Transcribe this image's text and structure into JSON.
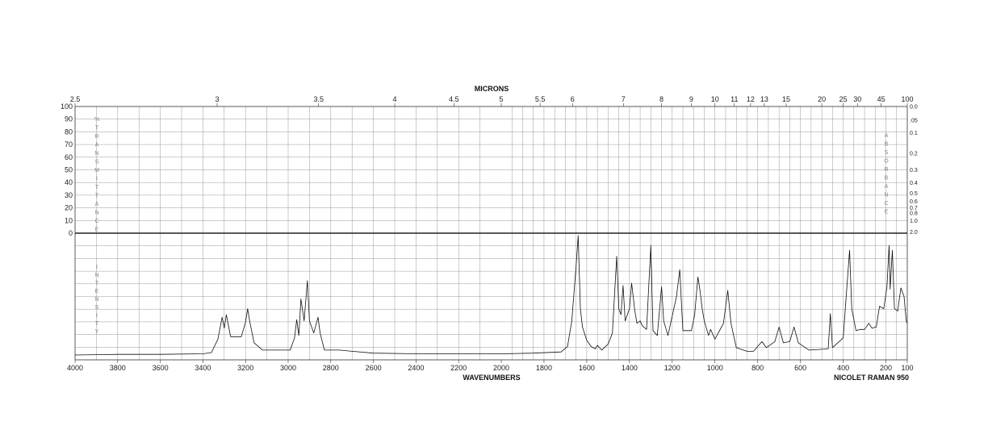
{
  "chart_data": {
    "type": "line",
    "top_axis": {
      "title": "MICRONS",
      "ticks": [
        "2.5",
        "3",
        "3.5",
        "4",
        "4.5",
        "5",
        "5.5",
        "6",
        "7",
        "8",
        "9",
        "10",
        "11",
        "12",
        "13",
        "15",
        "20",
        "25",
        "30",
        "45",
        "100"
      ]
    },
    "bottom_axis": {
      "title": "WAVENUMBERS",
      "xlim": [
        4000,
        100
      ],
      "ticks": [
        "4000",
        "3800",
        "3600",
        "3400",
        "3200",
        "3000",
        "2800",
        "2600",
        "2400",
        "2200",
        "2000",
        "1800",
        "1600",
        "1400",
        "1200",
        "1000",
        "800",
        "600",
        "400",
        "200",
        "100"
      ]
    },
    "left_axis": {
      "ticks": [
        "100",
        "90",
        "80",
        "70",
        "60",
        "50",
        "40",
        "30",
        "20",
        "10",
        "0"
      ],
      "label_upper": "%TRANSMITTANCE",
      "label_lower": "INTENSITY"
    },
    "right_axis": {
      "ticks": [
        "0.0",
        ".05",
        "0.1",
        "0.2",
        "0.3",
        "0.4",
        "0.5",
        "0.6",
        "0.7",
        "0.8",
        "1.0",
        "2.0"
      ],
      "label": "ABSORBANCE"
    },
    "footer_label": "NICOLET RAMAN 950",
    "grid": true,
    "series": [
      {
        "values": [
          [
            4000,
            2
          ],
          [
            3800,
            2.5
          ],
          [
            3600,
            2.5
          ],
          [
            3400,
            3
          ],
          [
            3360,
            4
          ],
          [
            3330,
            15
          ],
          [
            3310,
            33
          ],
          [
            3300,
            24
          ],
          [
            3290,
            35
          ],
          [
            3270,
            17
          ],
          [
            3220,
            17
          ],
          [
            3200,
            29
          ],
          [
            3190,
            40
          ],
          [
            3180,
            29
          ],
          [
            3160,
            12
          ],
          [
            3120,
            6
          ],
          [
            3060,
            6
          ],
          [
            2990,
            6
          ],
          [
            2970,
            16
          ],
          [
            2960,
            31
          ],
          [
            2950,
            18
          ],
          [
            2940,
            48
          ],
          [
            2925,
            30
          ],
          [
            2910,
            63
          ],
          [
            2900,
            30
          ],
          [
            2880,
            20
          ],
          [
            2860,
            33
          ],
          [
            2850,
            20
          ],
          [
            2830,
            6
          ],
          [
            2760,
            6
          ],
          [
            2700,
            5
          ],
          [
            2600,
            3.5
          ],
          [
            2400,
            3
          ],
          [
            2200,
            3
          ],
          [
            2000,
            3
          ],
          [
            1850,
            3.5
          ],
          [
            1720,
            4.5
          ],
          [
            1690,
            9
          ],
          [
            1670,
            30
          ],
          [
            1650,
            75
          ],
          [
            1640,
            100
          ],
          [
            1630,
            40
          ],
          [
            1620,
            25
          ],
          [
            1600,
            14
          ],
          [
            1580,
            9
          ],
          [
            1560,
            7
          ],
          [
            1550,
            10
          ],
          [
            1530,
            6
          ],
          [
            1500,
            11
          ],
          [
            1480,
            20
          ],
          [
            1460,
            83
          ],
          [
            1450,
            40
          ],
          [
            1440,
            35
          ],
          [
            1430,
            59
          ],
          [
            1420,
            30
          ],
          [
            1400,
            40
          ],
          [
            1390,
            61
          ],
          [
            1375,
            38
          ],
          [
            1365,
            28
          ],
          [
            1350,
            30
          ],
          [
            1340,
            26
          ],
          [
            1320,
            23
          ],
          [
            1300,
            92
          ],
          [
            1290,
            22
          ],
          [
            1270,
            18
          ],
          [
            1250,
            58
          ],
          [
            1240,
            30
          ],
          [
            1220,
            18
          ],
          [
            1180,
            50
          ],
          [
            1165,
            72
          ],
          [
            1150,
            22
          ],
          [
            1110,
            22
          ],
          [
            1095,
            35
          ],
          [
            1080,
            66
          ],
          [
            1070,
            55
          ],
          [
            1060,
            40
          ],
          [
            1050,
            30
          ],
          [
            1030,
            18
          ],
          [
            1020,
            23
          ],
          [
            1000,
            15
          ],
          [
            960,
            28
          ],
          [
            940,
            55
          ],
          [
            925,
            28
          ],
          [
            900,
            8
          ],
          [
            850,
            5
          ],
          [
            820,
            5
          ],
          [
            780,
            13
          ],
          [
            760,
            8
          ],
          [
            720,
            13
          ],
          [
            700,
            25
          ],
          [
            680,
            12
          ],
          [
            650,
            13
          ],
          [
            630,
            25
          ],
          [
            610,
            12
          ],
          [
            560,
            6
          ],
          [
            470,
            7
          ],
          [
            460,
            36
          ],
          [
            450,
            8
          ],
          [
            400,
            16
          ],
          [
            370,
            88
          ],
          [
            360,
            40
          ],
          [
            340,
            22
          ],
          [
            320,
            23
          ],
          [
            300,
            23
          ],
          [
            280,
            28
          ],
          [
            265,
            24
          ],
          [
            245,
            25
          ],
          [
            230,
            42
          ],
          [
            210,
            40
          ],
          [
            195,
            58
          ],
          [
            185,
            92
          ],
          [
            180,
            56
          ],
          [
            170,
            88
          ],
          [
            160,
            40
          ],
          [
            145,
            38
          ],
          [
            130,
            57
          ],
          [
            115,
            50
          ],
          [
            105,
            30
          ],
          [
            100,
            28
          ]
        ]
      }
    ]
  }
}
